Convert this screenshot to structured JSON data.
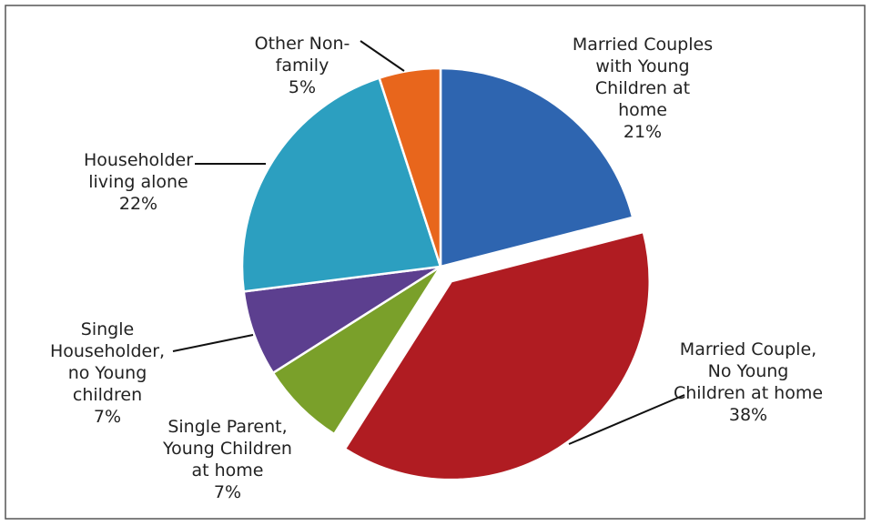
{
  "chart_data": {
    "type": "pie",
    "categories": [
      "Married Couples with Young Children at home",
      "Married Couple, No Young Children at home",
      "Single Parent, Young Children at home",
      "Single Householder, no Young children",
      "Householder living alone",
      "Other Non-family"
    ],
    "values": [
      21,
      38,
      7,
      7,
      22,
      5
    ],
    "value_labels": [
      "21%",
      "38%",
      "7%",
      "7%",
      "22%",
      "5%"
    ],
    "colors": [
      "#2e65b0",
      "#b01c22",
      "#7aa02a",
      "#5c3f8f",
      "#2c9fc0",
      "#e8661c"
    ],
    "exploded": [
      false,
      true,
      false,
      false,
      false,
      false
    ]
  }
}
